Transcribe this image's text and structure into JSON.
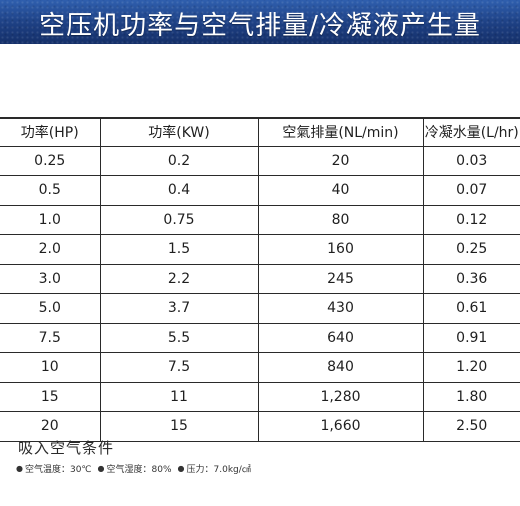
{
  "header": {
    "title": "空压机功率与空气排量/冷凝液产生量",
    "banner_color": "#1d3f82"
  },
  "table": {
    "columns": [
      "功率(HP)",
      "功率(KW)",
      "空氣排量(NL/min)",
      "冷凝水量(L/hr)"
    ],
    "rows": [
      [
        "0.25",
        "0.2",
        "20",
        "0.03"
      ],
      [
        "0.5",
        "0.4",
        "40",
        "0.07"
      ],
      [
        "1.0",
        "0.75",
        "80",
        "0.12"
      ],
      [
        "2.0",
        "1.5",
        "160",
        "0.25"
      ],
      [
        "3.0",
        "2.2",
        "245",
        "0.36"
      ],
      [
        "5.0",
        "3.7",
        "430",
        "0.61"
      ],
      [
        "7.5",
        "5.5",
        "640",
        "0.91"
      ],
      [
        "10",
        "7.5",
        "840",
        "1.20"
      ],
      [
        "15",
        "11",
        "1,280",
        "1.80"
      ],
      [
        "20",
        "15",
        "1,660",
        "2.50"
      ]
    ]
  },
  "conditions": {
    "title": "吸入空气条件",
    "items": [
      {
        "icon": "bullet-dot-icon",
        "label": "空气温度：30℃"
      },
      {
        "icon": "bullet-dot-icon",
        "label": "空气湿度：80%"
      },
      {
        "icon": "bullet-dot-icon",
        "label": "压力：7.0kg/㎠"
      }
    ]
  }
}
